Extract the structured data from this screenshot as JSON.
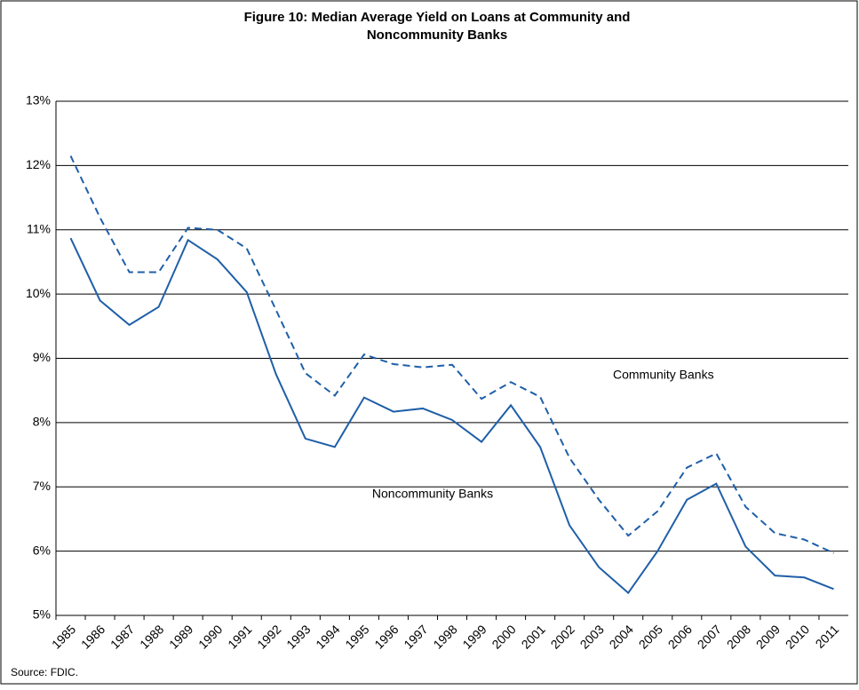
{
  "chart_data": {
    "type": "line",
    "title": [
      "Figure 10: Median Average Yield on Loans at Community and",
      "Noncommunity Banks"
    ],
    "categories": [
      "1985",
      "1986",
      "1987",
      "1988",
      "1989",
      "1990",
      "1991",
      "1992",
      "1993",
      "1994",
      "1995",
      "1996",
      "1997",
      "1998",
      "1999",
      "2000",
      "2001",
      "2002",
      "2003",
      "2004",
      "2005",
      "2006",
      "2007",
      "2008",
      "2009",
      "2010",
      "2011"
    ],
    "series": [
      {
        "name": "Community Banks",
        "color": "#1f5fa8",
        "dash": true,
        "values": [
          12.15,
          11.19,
          10.34,
          10.34,
          11.03,
          11.0,
          10.71,
          9.75,
          8.77,
          8.42,
          9.06,
          8.91,
          8.86,
          8.9,
          8.37,
          8.63,
          8.4,
          7.45,
          6.8,
          6.24,
          6.62,
          7.3,
          7.52,
          6.69,
          6.28,
          6.18,
          5.97
        ]
      },
      {
        "name": "Noncommunity Banks",
        "color": "#1f5fa8",
        "dash": false,
        "values": [
          10.87,
          9.9,
          9.52,
          9.8,
          10.84,
          10.54,
          10.03,
          8.75,
          7.75,
          7.62,
          8.39,
          8.17,
          8.22,
          8.04,
          7.7,
          8.27,
          7.62,
          6.4,
          5.75,
          5.35,
          6.0,
          6.8,
          7.05,
          6.07,
          5.62,
          5.59,
          5.41
        ]
      }
    ],
    "ylim": [
      5,
      13
    ],
    "yticks": [
      {
        "value": 5,
        "label": "5%"
      },
      {
        "value": 6,
        "label": "6%"
      },
      {
        "value": 7,
        "label": "7%"
      },
      {
        "value": 8,
        "label": "8%"
      },
      {
        "value": 9,
        "label": "9%"
      },
      {
        "value": 10,
        "label": "10%"
      },
      {
        "value": 11,
        "label": "11%"
      },
      {
        "value": 12,
        "label": "12%"
      },
      {
        "value": 13,
        "label": "13%"
      }
    ],
    "grid": true,
    "source": "Source: FDIC."
  }
}
